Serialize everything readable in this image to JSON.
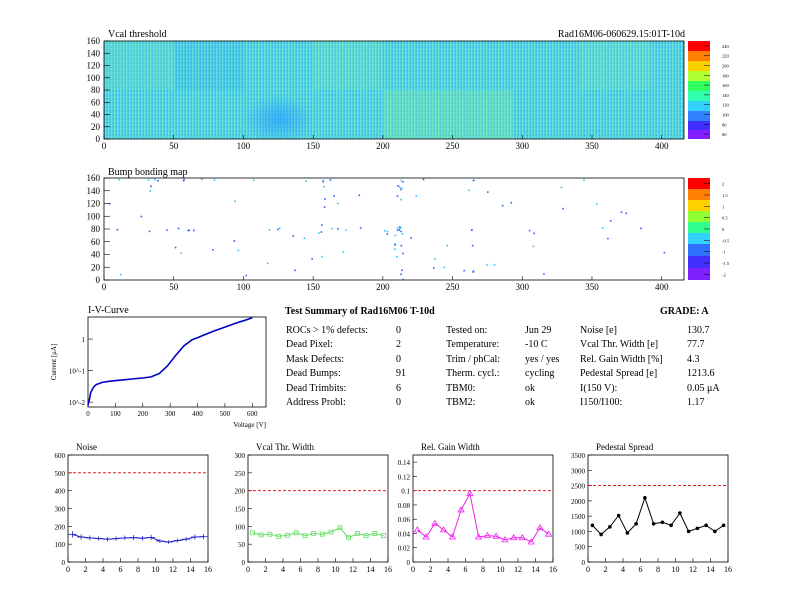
{
  "heatmap_vcal": {
    "title": "Vcal threshold",
    "module_label": "Rad16M06-060629.15:01T-10d",
    "x_ticks": [
      "0",
      "50",
      "100",
      "150",
      "200",
      "250",
      "300",
      "350",
      "400"
    ],
    "y_ticks": [
      "0",
      "20",
      "40",
      "60",
      "80",
      "100",
      "120",
      "140",
      "160"
    ],
    "palette_ticks": [
      "240",
      "220",
      "200",
      "180",
      "160",
      "140",
      "120",
      "100",
      "80",
      "60"
    ]
  },
  "heatmap_bump": {
    "title": "Bump bonding map",
    "x_ticks": [
      "0",
      "50",
      "100",
      "150",
      "200",
      "250",
      "300",
      "350",
      "400"
    ],
    "y_ticks": [
      "0",
      "20",
      "40",
      "60",
      "80",
      "100",
      "120",
      "140",
      "160"
    ],
    "palette_ticks": [
      "2",
      "1.5",
      "1",
      "0.5",
      "0",
      "-0.5",
      "-1",
      "-1.5",
      "-2"
    ]
  },
  "summary": {
    "title": "Test Summary of Rad16M06    T-10d",
    "grade": "GRADE:  A",
    "col1": [
      {
        "k": "ROCs > 1% defects:",
        "v": "0"
      },
      {
        "k": "Dead Pixel:",
        "v": "2"
      },
      {
        "k": "Mask Defects:",
        "v": "0"
      },
      {
        "k": "Dead Bumps:",
        "v": "91"
      },
      {
        "k": "Dead Trimbits:",
        "v": "6"
      },
      {
        "k": "Address Probl:",
        "v": "0"
      }
    ],
    "col2": [
      {
        "k": "Tested on:",
        "v": "Jun 29"
      },
      {
        "k": "Temperature:",
        "v": "-10 C"
      },
      {
        "k": "Trim / phCal:",
        "v": "yes / yes"
      },
      {
        "k": "Therm. cycl.:",
        "v": "cycling"
      },
      {
        "k": "TBM0:",
        "v": "ok"
      },
      {
        "k": "TBM2:",
        "v": "ok"
      }
    ],
    "col3": [
      {
        "k": "Noise [e]",
        "v": "130.7"
      },
      {
        "k": "Vcal Thr. Width [e]",
        "v": "77.7"
      },
      {
        "k": "Rel. Gain Width [%]",
        "v": "4.3"
      },
      {
        "k": "Pedestal Spread [e]",
        "v": "1213.6"
      },
      {
        "k": "I(150 V):",
        "v": "0.05 μA"
      },
      {
        "k": "I150/I100:",
        "v": "1.17"
      }
    ]
  },
  "colors": {
    "noise": "#2222cc",
    "vcal": "#66dd66",
    "gain": "#ee22ee",
    "ped": "#000000",
    "ref": "#dd0000",
    "iv": "#0000cc"
  },
  "chart_data": [
    {
      "type": "line",
      "title": "I-V-Curve",
      "xlabel": "Voltage [V]",
      "ylabel": "Current [μA]",
      "xlim": [
        0,
        650
      ],
      "ylim": [
        0.007,
        5
      ],
      "log_y": true,
      "x_ticks": [
        "0",
        "100",
        "200",
        "300",
        "400",
        "500",
        "600"
      ],
      "y_ticks": [
        {
          "v": 0.01,
          "label": "10^-2"
        },
        {
          "v": 0.1,
          "label": "10^-1"
        },
        {
          "v": 1,
          "label": "1"
        }
      ],
      "x": [
        0,
        5,
        10,
        20,
        30,
        50,
        80,
        120,
        160,
        200,
        230,
        260,
        290,
        320,
        350,
        380,
        400,
        420,
        460,
        500,
        540,
        580,
        600
      ],
      "y": [
        0.008,
        0.012,
        0.02,
        0.03,
        0.036,
        0.042,
        0.046,
        0.05,
        0.054,
        0.058,
        0.063,
        0.08,
        0.14,
        0.3,
        0.6,
        0.95,
        1.1,
        1.3,
        1.8,
        2.4,
        3.2,
        4.1,
        4.8
      ]
    },
    {
      "type": "line",
      "title": "Noise",
      "xlim": [
        0,
        16
      ],
      "ylim": [
        0,
        600
      ],
      "x_ticks": [
        "0",
        "2",
        "4",
        "6",
        "8",
        "10",
        "12",
        "14",
        "16"
      ],
      "y_ticks": [
        "0",
        "100",
        "200",
        "300",
        "400",
        "500",
        "600"
      ],
      "reference": 500,
      "x": [
        0.5,
        1.5,
        2.5,
        3.5,
        4.5,
        5.5,
        6.5,
        7.5,
        8.5,
        9.5,
        10.5,
        11.5,
        12.5,
        13.5,
        14.5,
        15.5
      ],
      "values": [
        155,
        140,
        135,
        132,
        128,
        131,
        135,
        137,
        133,
        138,
        118,
        112,
        120,
        128,
        140,
        142
      ],
      "errors": [
        18,
        15,
        14,
        12,
        12,
        12,
        13,
        14,
        13,
        14,
        11,
        10,
        11,
        12,
        14,
        14
      ]
    },
    {
      "type": "line",
      "title": "Vcal Thr. Width",
      "xlim": [
        0,
        16
      ],
      "ylim": [
        0,
        300
      ],
      "x_ticks": [
        "0",
        "2",
        "4",
        "6",
        "8",
        "10",
        "12",
        "14",
        "16"
      ],
      "y_ticks": [
        "0",
        "50",
        "100",
        "150",
        "200",
        "250",
        "300"
      ],
      "reference": 200,
      "x": [
        0.5,
        1.5,
        2.5,
        3.5,
        4.5,
        5.5,
        6.5,
        7.5,
        8.5,
        9.5,
        10.5,
        11.5,
        12.5,
        13.5,
        14.5,
        15.5
      ],
      "values": [
        82,
        76,
        78,
        72,
        75,
        82,
        74,
        80,
        78,
        84,
        96,
        68,
        80,
        74,
        80,
        74
      ]
    },
    {
      "type": "line",
      "title": "Rel. Gain Width",
      "xlim": [
        0,
        16
      ],
      "ylim": [
        0,
        0.15
      ],
      "x_ticks": [
        "0",
        "2",
        "4",
        "6",
        "8",
        "10",
        "12",
        "14",
        "16"
      ],
      "y_ticks": [
        "0",
        "0.02",
        "0.04",
        "0.06",
        "0.08",
        "0.1",
        "0.12",
        "0.14"
      ],
      "reference": 0.1,
      "x": [
        0.5,
        1.5,
        2.5,
        3.5,
        4.5,
        5.5,
        6.5,
        7.5,
        8.5,
        9.5,
        10.5,
        11.5,
        12.5,
        13.5,
        14.5,
        15.5
      ],
      "values": [
        0.045,
        0.035,
        0.054,
        0.045,
        0.035,
        0.073,
        0.096,
        0.035,
        0.037,
        0.036,
        0.031,
        0.034,
        0.034,
        0.028,
        0.048,
        0.039
      ]
    },
    {
      "type": "line",
      "title": "Pedestal Spread",
      "xlim": [
        0,
        16
      ],
      "ylim": [
        0,
        3500
      ],
      "x_ticks": [
        "0",
        "2",
        "4",
        "6",
        "8",
        "10",
        "12",
        "14",
        "16"
      ],
      "y_ticks": [
        "0",
        "500",
        "1000",
        "1500",
        "2000",
        "2500",
        "3000",
        "3500"
      ],
      "reference": 2500,
      "x": [
        0.5,
        1.5,
        2.5,
        3.5,
        4.5,
        5.5,
        6.5,
        7.5,
        8.5,
        9.5,
        10.5,
        11.5,
        12.5,
        13.5,
        14.5,
        15.5
      ],
      "values": [
        1200,
        900,
        1150,
        1520,
        950,
        1250,
        2100,
        1250,
        1300,
        1200,
        1600,
        1000,
        1100,
        1200,
        1000,
        1200
      ]
    }
  ]
}
